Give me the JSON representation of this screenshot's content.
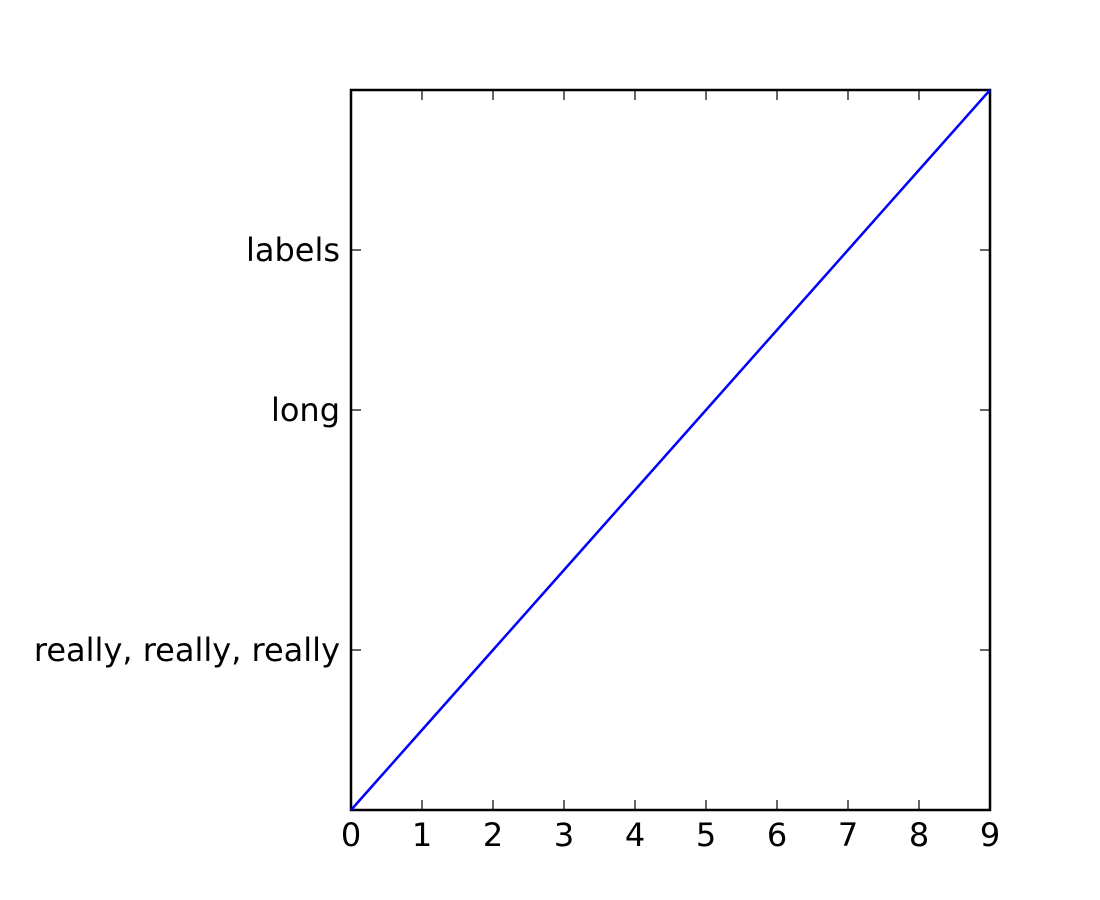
{
  "chart_data": {
    "type": "line",
    "title": "",
    "xlabel": "",
    "ylabel": "",
    "xlim": [
      0,
      9
    ],
    "ylim": [
      0,
      9
    ],
    "grid": false,
    "x_ticks": [
      0,
      1,
      2,
      3,
      4,
      5,
      6,
      7,
      8,
      9
    ],
    "x_tick_labels": [
      "0",
      "1",
      "2",
      "3",
      "4",
      "5",
      "6",
      "7",
      "8",
      "9"
    ],
    "y_ticks": [
      2,
      5,
      7
    ],
    "y_tick_labels": [
      "really, really, really",
      "long",
      "labels"
    ],
    "series": [
      {
        "x": [
          0,
          1,
          2,
          3,
          4,
          5,
          6,
          7,
          8,
          9
        ],
        "y": [
          0,
          1,
          2,
          3,
          4,
          5,
          6,
          7,
          8,
          9
        ],
        "color": "#0000ff"
      }
    ]
  }
}
